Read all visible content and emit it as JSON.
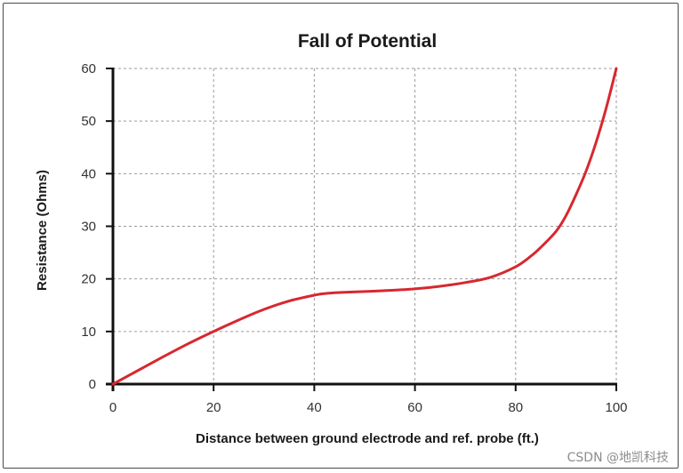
{
  "colors": {
    "line": "#d7282f",
    "axis": "#111111",
    "grid": "#9a9a9a",
    "frame": "#4a4a4a"
  },
  "watermark": "CSDN @地凯科技",
  "chart_data": {
    "type": "line",
    "title": "Fall of Potential",
    "xlabel": "Distance between ground electrode and ref. probe (ft.)",
    "ylabel": "Resistance (Ohms)",
    "xlim": [
      0,
      100
    ],
    "ylim": [
      0,
      60
    ],
    "x_ticks": [
      0,
      20,
      40,
      60,
      80,
      100
    ],
    "y_ticks": [
      0,
      10,
      20,
      30,
      40,
      50,
      60
    ],
    "grid": true,
    "grid_style": "dashed",
    "legend": "none",
    "series": [
      {
        "x": [
          0,
          5,
          10,
          15,
          20,
          25,
          30,
          35,
          40,
          42,
          45,
          50,
          55,
          60,
          65,
          70,
          75,
          80,
          83,
          85,
          88,
          90,
          92,
          94,
          96,
          98,
          100
        ],
        "y": [
          0,
          2.6,
          5.2,
          7.7,
          10.0,
          12.2,
          14.2,
          15.8,
          16.9,
          17.2,
          17.4,
          17.6,
          17.8,
          18.1,
          18.6,
          19.3,
          20.3,
          22.3,
          24.3,
          26.0,
          29.0,
          32.0,
          36.0,
          40.5,
          46.0,
          52.5,
          60.0
        ]
      }
    ]
  }
}
